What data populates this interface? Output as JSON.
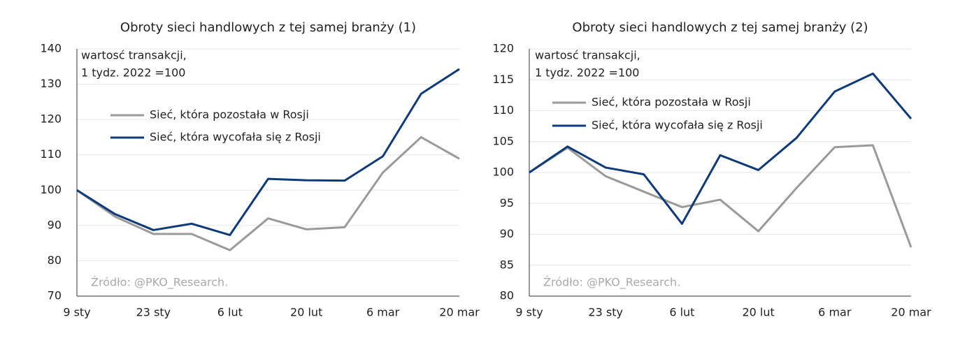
{
  "chart_data": [
    {
      "type": "line",
      "title": "Obroty sieci handlowych z tej samej branży (1)",
      "annotation": [
        "wartosć transakcji,",
        "1 tydz. 2022 =100"
      ],
      "source": "Źródło: @PKO_Research.",
      "categories": [
        "9 sty",
        null,
        "23 sty",
        null,
        "6 lut",
        null,
        "20 lut",
        null,
        "6 mar",
        null,
        "20 mar"
      ],
      "series": [
        {
          "name": "Sieć, która pozostała w Rosji",
          "color": "#9a9a9a",
          "values": [
            100,
            92.5,
            87.6,
            87.6,
            83,
            92,
            88.9,
            89.5,
            105,
            115,
            108.9
          ]
        },
        {
          "name": "Sieć, która wycofała się z Rosji",
          "color": "#0e3a78",
          "values": [
            100,
            93.2,
            88.7,
            90.5,
            87.3,
            103.2,
            102.8,
            102.7,
            109.6,
            127.3,
            134.3
          ]
        }
      ],
      "ylim": [
        70,
        140
      ],
      "yticks": [
        70,
        80,
        90,
        100,
        110,
        120,
        130,
        140
      ],
      "grid": true,
      "legend": "upper left"
    },
    {
      "type": "line",
      "title": "Obroty sieci handlowych z tej samej branży (2)",
      "annotation": [
        "wartosć transakcji,",
        "1 tydz. 2022 =100"
      ],
      "source": "Źródło: @PKO_Research.",
      "categories": [
        "9 sty",
        null,
        "23 sty",
        null,
        "6 lut",
        null,
        "20 lut",
        null,
        "6 mar",
        null,
        "20 mar"
      ],
      "series": [
        {
          "name": "Sieć, która pozostała w Rosji",
          "color": "#9a9a9a",
          "values": [
            100,
            104,
            99.4,
            96.9,
            94.4,
            95.6,
            90.5,
            97.5,
            104.1,
            104.4,
            87.9
          ]
        },
        {
          "name": "Sieć, która wycofała się z Rosji",
          "color": "#0e3a78",
          "values": [
            100,
            104.2,
            100.8,
            99.7,
            91.7,
            102.8,
            100.4,
            105.6,
            113.1,
            116,
            108.7
          ]
        }
      ],
      "ylim": [
        80,
        120
      ],
      "yticks": [
        80,
        85,
        90,
        95,
        100,
        105,
        110,
        115,
        120
      ],
      "grid": true,
      "legend": "upper left"
    }
  ]
}
